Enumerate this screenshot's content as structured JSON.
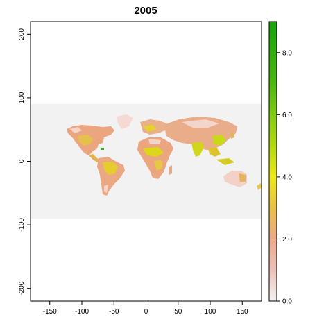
{
  "title": "2005",
  "map": {
    "x_ticks": [
      -150,
      -100,
      -50,
      0,
      50,
      100,
      150
    ],
    "y_ticks": [
      -200,
      -100,
      0,
      100,
      200
    ],
    "xlim": [
      -180,
      180
    ],
    "ylim": [
      -220,
      220
    ],
    "raster_extent_lat": [
      -90,
      90
    ],
    "background_color": "#f2f2f2"
  },
  "colorbar": {
    "ticks": [
      "0.0",
      "2.0",
      "4.0",
      "6.0",
      "8.0"
    ],
    "range": [
      0,
      9
    ],
    "stops": [
      {
        "v": 0,
        "color": "#f2f2f2"
      },
      {
        "v": 1,
        "color": "#ecc2b6"
      },
      {
        "v": 2,
        "color": "#eda98b"
      },
      {
        "v": 3,
        "color": "#e9c146"
      },
      {
        "v": 4,
        "color": "#ecea17"
      },
      {
        "v": 5,
        "color": "#b3d90e"
      },
      {
        "v": 6,
        "color": "#80cc0f"
      },
      {
        "v": 7,
        "color": "#4cb80c"
      },
      {
        "v": 9,
        "color": "#16a30c"
      }
    ]
  }
}
